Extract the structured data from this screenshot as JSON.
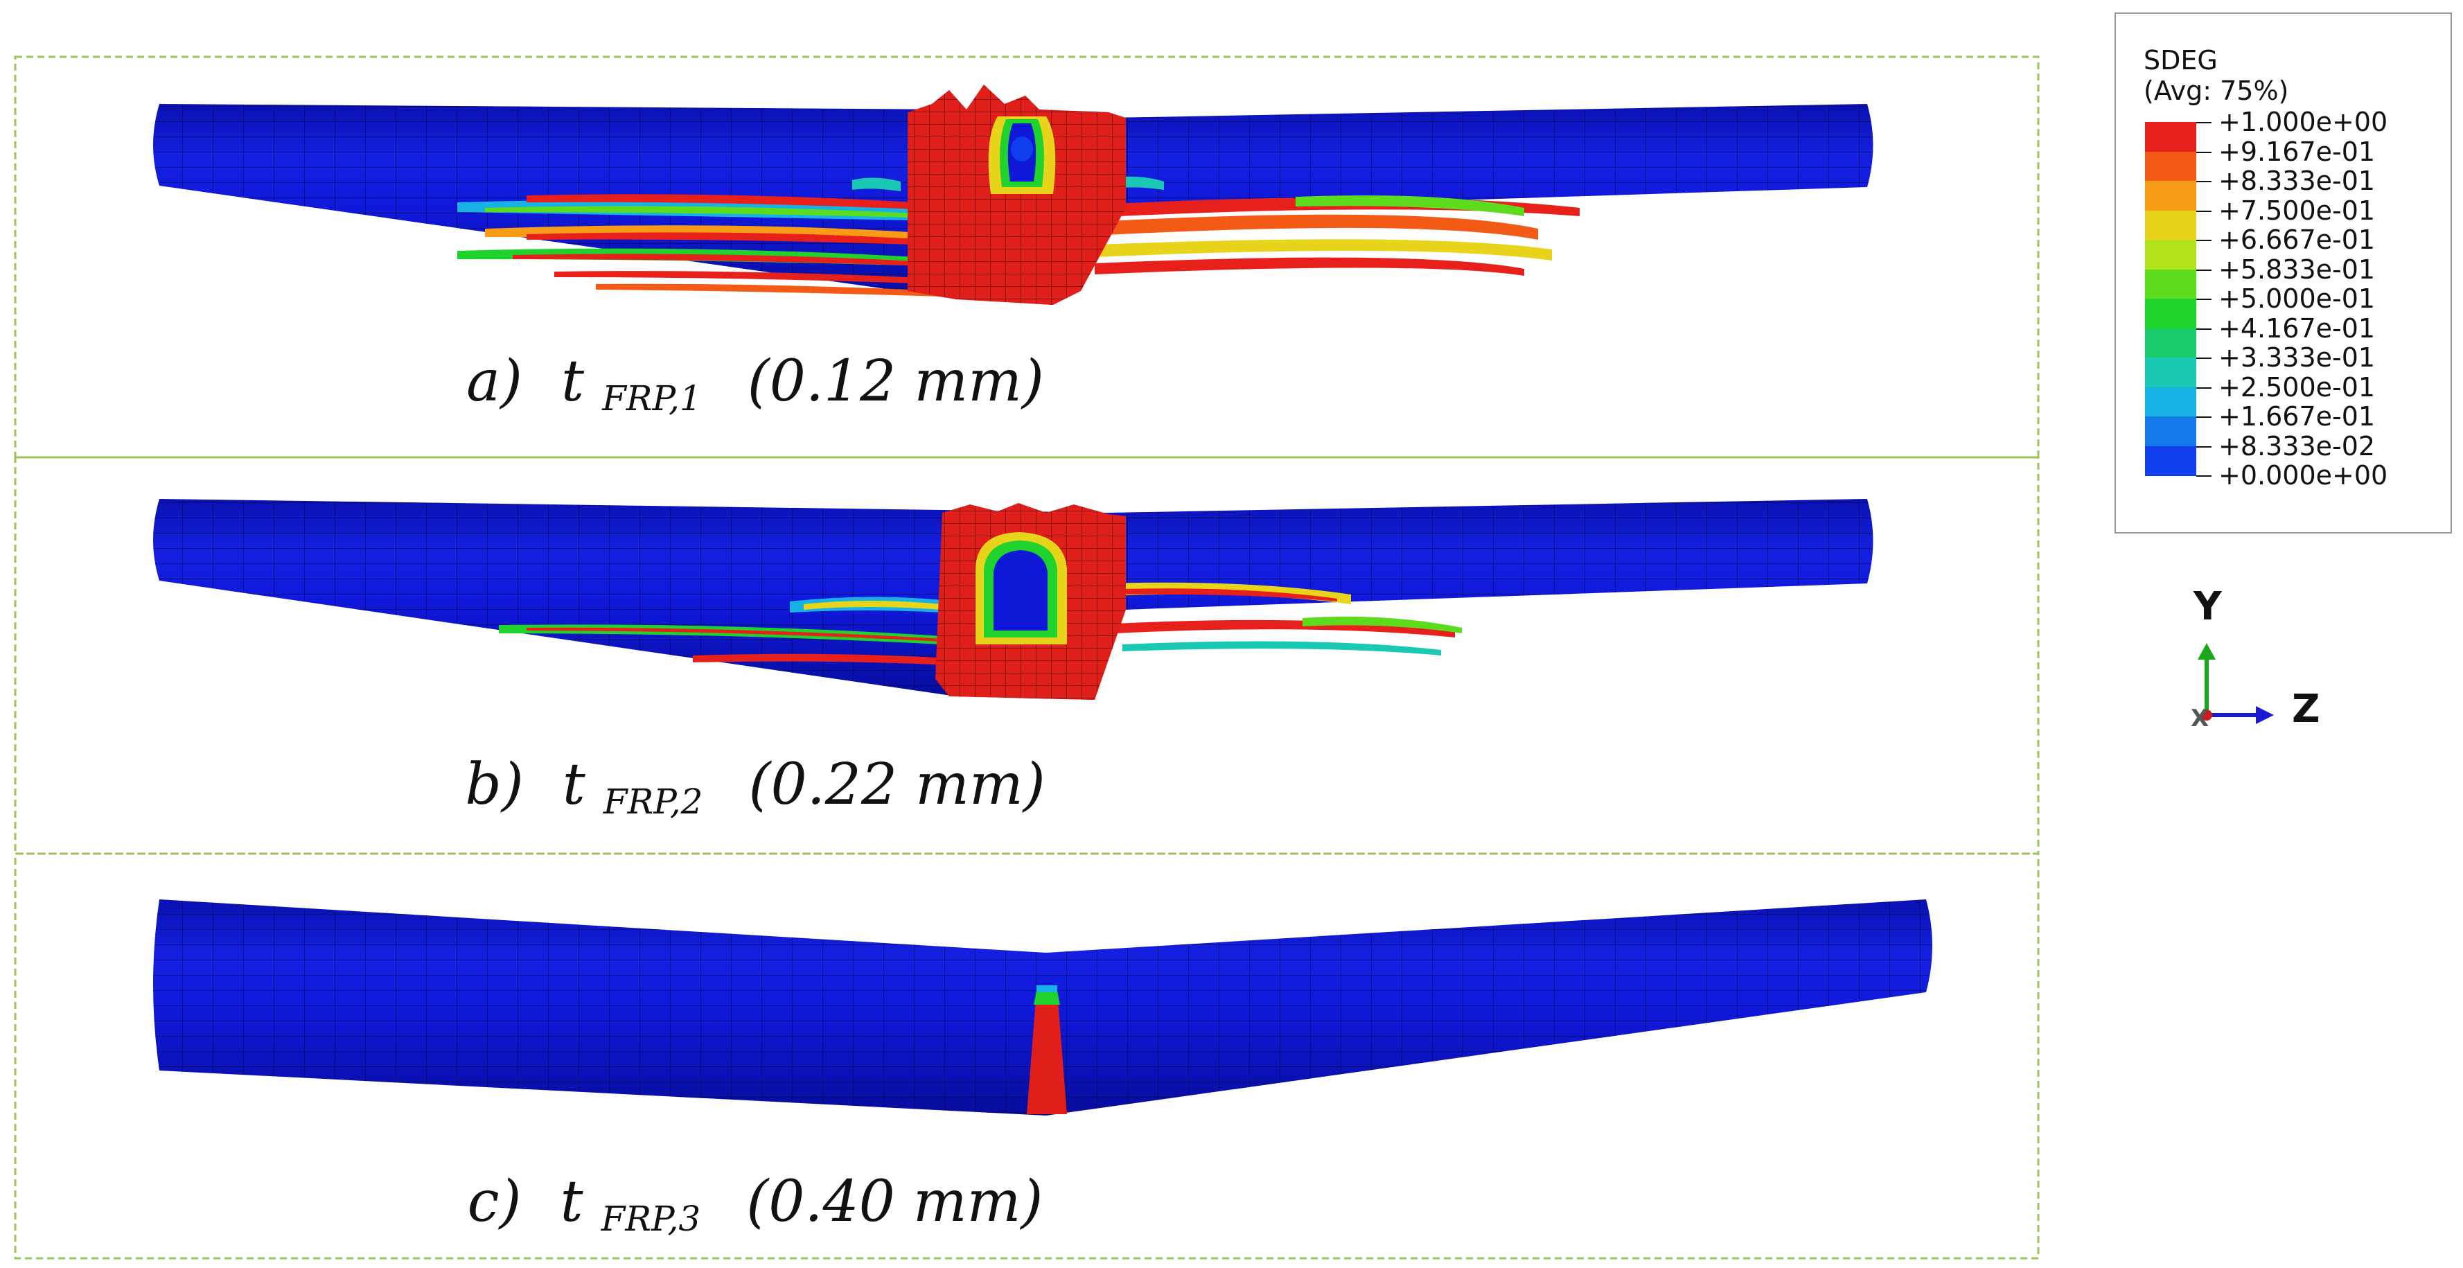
{
  "panels": [
    {
      "id": "a",
      "prefix": "a)",
      "var": "t",
      "subscript": "FRP,1",
      "value": "(0.12 mm)",
      "damage": "heavy"
    },
    {
      "id": "b",
      "prefix": "b)",
      "var": "t",
      "subscript": "FRP,2",
      "value": "(0.22 mm)",
      "damage": "moderate"
    },
    {
      "id": "c",
      "prefix": "c)",
      "var": "t",
      "subscript": "FRP,3",
      "value": "(0.40 mm)",
      "damage": "light"
    }
  ],
  "legend": {
    "title_line1": "SDEG",
    "title_line2": "(Avg: 75%)",
    "levels": [
      "+1.000e+00",
      "+9.167e-01",
      "+8.333e-01",
      "+7.500e-01",
      "+6.667e-01",
      "+5.833e-01",
      "+5.000e-01",
      "+4.167e-01",
      "+3.333e-01",
      "+2.500e-01",
      "+1.667e-01",
      "+8.333e-02",
      "+0.000e+00"
    ],
    "colors": [
      "#e8201c",
      "#f25a16",
      "#f89c17",
      "#e8d41a",
      "#b3e21d",
      "#5ddc1e",
      "#1fd22c",
      "#1ccb6e",
      "#1ac9b3",
      "#16b2e6",
      "#1479ea",
      "#0f3fec"
    ]
  },
  "triad": {
    "y_label": "Y",
    "z_label": "Z",
    "x_label": "X",
    "y_color": "#1aa81a",
    "z_color": "#1a1ad0",
    "x_color": "#d01a1a"
  },
  "colors": {
    "beam_blue": "#1018d8",
    "panel_border": "#9bc45a",
    "damage_red": "#e01e1a"
  }
}
